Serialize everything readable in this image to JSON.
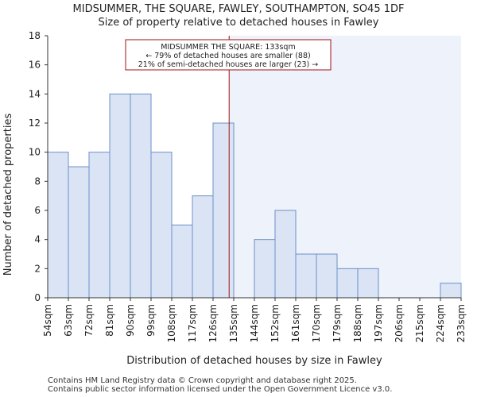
{
  "header": {
    "title": "MIDSUMMER, THE SQUARE, FAWLEY, SOUTHAMPTON, SO45 1DF",
    "subtitle": "Size of property relative to detached houses in Fawley"
  },
  "footer": {
    "line1": "Contains HM Land Registry data © Crown copyright and database right 2025.",
    "line2": "Contains public sector information licensed under the Open Government Licence v3.0."
  },
  "colors": {
    "bar_fill": "#dbe4f5",
    "bar_stroke": "#6b8fc9",
    "highlight_bg": "#eef2fb",
    "marker": "#a01010",
    "annotation_border": "#a01010"
  },
  "chart_data": {
    "type": "bar",
    "xlabel": "Distribution of detached houses by size in Fawley",
    "ylabel": "Number of detached properties",
    "ylim": [
      0,
      18
    ],
    "yticks": [
      0,
      2,
      4,
      6,
      8,
      10,
      12,
      14,
      16,
      18
    ],
    "bin_edges": [
      "54sqm",
      "63sqm",
      "72sqm",
      "81sqm",
      "90sqm",
      "99sqm",
      "108sqm",
      "117sqm",
      "126sqm",
      "135sqm",
      "144sqm",
      "152sqm",
      "161sqm",
      "170sqm",
      "179sqm",
      "188sqm",
      "197sqm",
      "206sqm",
      "215sqm",
      "224sqm",
      "233sqm"
    ],
    "values": [
      10,
      9,
      10,
      14,
      14,
      10,
      5,
      7,
      12,
      0,
      4,
      6,
      3,
      3,
      2,
      2,
      0,
      0,
      0,
      1
    ],
    "marker_value_sqm": 133,
    "highlight_from_sqm": 133,
    "grid": false,
    "annotation": {
      "line1": "MIDSUMMER THE SQUARE: 133sqm",
      "line2": "← 79% of detached houses are smaller (88)",
      "line3": "21% of semi-detached houses are larger (23) →"
    }
  }
}
